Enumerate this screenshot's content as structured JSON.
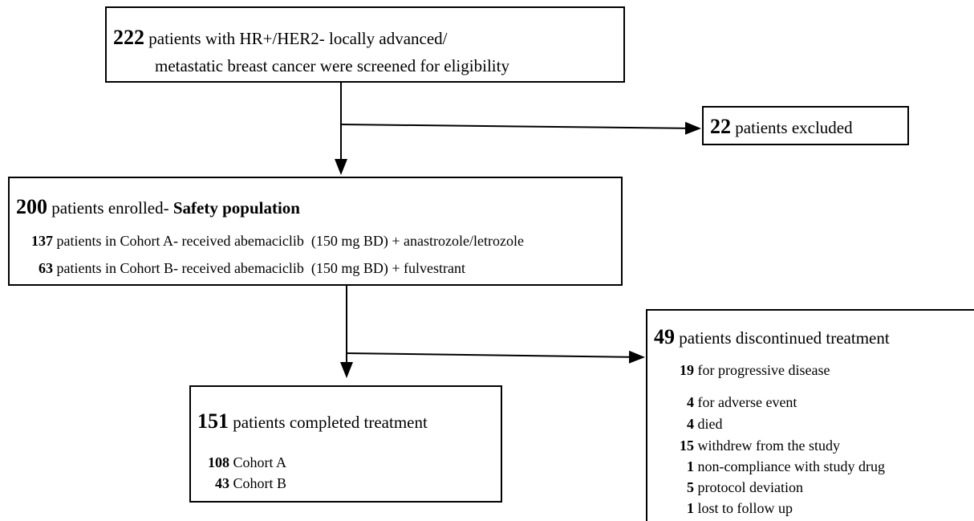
{
  "screening": {
    "count": 222,
    "line1": "patients with HR+/HER2- locally advanced/",
    "line2": "metastatic breast cancer were screened for eligibility"
  },
  "excluded": {
    "count": 22,
    "text": "patients excluded"
  },
  "enrolled": {
    "count": 200,
    "text": "patients enrolled-",
    "emphasis": "Safety population",
    "cohorts": [
      {
        "count": 137,
        "text": "patients in Cohort A- received abemaciclib  (150 mg BD) + anastrozole/letrozole"
      },
      {
        "count": 63,
        "text": "patients in Cohort B- received abemaciclib  (150 mg BD) + fulvestrant"
      }
    ]
  },
  "completed": {
    "count": 151,
    "text": "patients completed treatment",
    "cohorts": [
      {
        "count": 108,
        "text": "Cohort A"
      },
      {
        "count": 43,
        "text": "Cohort B"
      }
    ]
  },
  "discontinued": {
    "count": 49,
    "text": "patients discontinued treatment",
    "reasons": [
      {
        "count": 19,
        "text": "for progressive disease"
      },
      {
        "count": 4,
        "text": "for adverse event"
      },
      {
        "count": 4,
        "text": "died"
      },
      {
        "count": 15,
        "text": "withdrew from the study"
      },
      {
        "count": 1,
        "text": "non-compliance with study drug"
      },
      {
        "count": 5,
        "text": "protocol deviation"
      },
      {
        "count": 1,
        "text": "lost to follow up"
      }
    ]
  }
}
